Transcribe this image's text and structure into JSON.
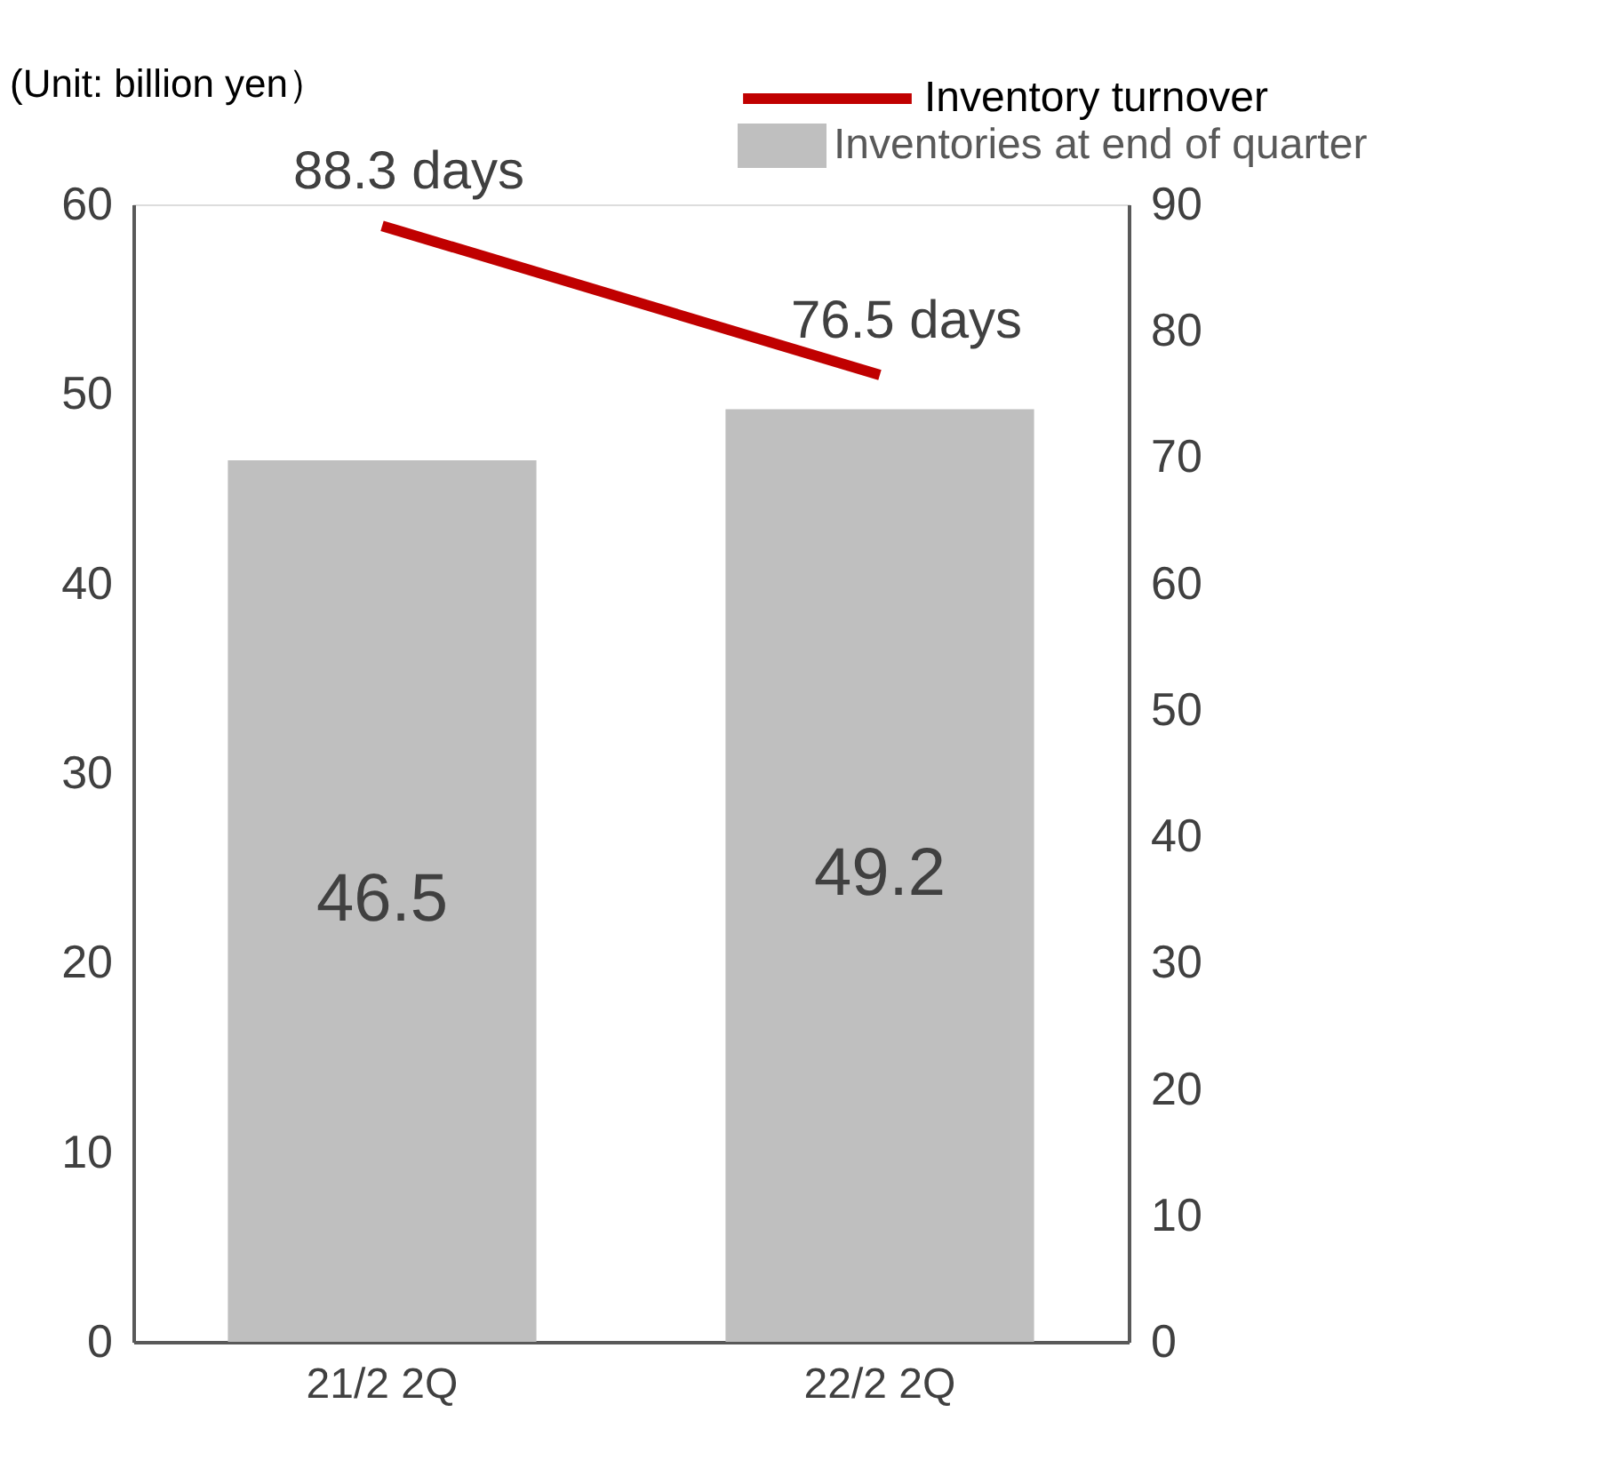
{
  "chart_data": {
    "type": "bar",
    "ylabel": "(Unit: billion yen）",
    "categories": [
      "21/2 2Q",
      "22/2 2Q"
    ],
    "series": [
      {
        "name": "Inventory turnover",
        "type": "line",
        "axis": "y2",
        "color": "#c00000",
        "values": [
          88.3,
          76.5
        ],
        "value_labels": [
          "88.3 days",
          "76.5 days"
        ]
      },
      {
        "name": "Inventories at end of quarter",
        "color": "#bfbfbf",
        "values": [
          46.5,
          49.2
        ],
        "value_labels": [
          "46.5",
          "49.2"
        ]
      }
    ],
    "ylim": [
      0,
      60
    ],
    "yticks": [
      0,
      10,
      20,
      30,
      40,
      50,
      60
    ],
    "y2lim": [
      0,
      90
    ],
    "y2ticks": [
      0,
      10,
      20,
      30,
      40,
      50,
      60,
      70,
      80,
      90
    ],
    "grid": false,
    "legend": "top right",
    "marker": "none",
    "line_style": "solid"
  }
}
